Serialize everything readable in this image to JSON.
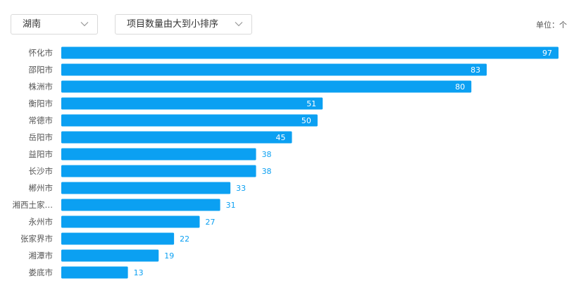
{
  "filters": {
    "region": "湖南",
    "sort": "项目数量由大到小排序"
  },
  "unit_label": "单位：个",
  "colors": {
    "bar": "#0ba0f2",
    "value_inside": "#ffffff",
    "value_outside": "#0ba0f2"
  },
  "icons": {
    "dropdown": "chevron-down-icon"
  },
  "chart_data": {
    "type": "bar",
    "orientation": "horizontal",
    "categories": [
      "怀化市",
      "邵阳市",
      "株洲市",
      "衡阳市",
      "常德市",
      "岳阳市",
      "益阳市",
      "长沙市",
      "郴州市",
      "湘西土家…",
      "永州市",
      "张家界市",
      "湘潭市",
      "娄底市"
    ],
    "values": [
      97,
      83,
      80,
      51,
      50,
      45,
      38,
      38,
      33,
      31,
      27,
      22,
      19,
      13
    ],
    "xlim": [
      0,
      97
    ],
    "grid": false,
    "legend": "none"
  }
}
